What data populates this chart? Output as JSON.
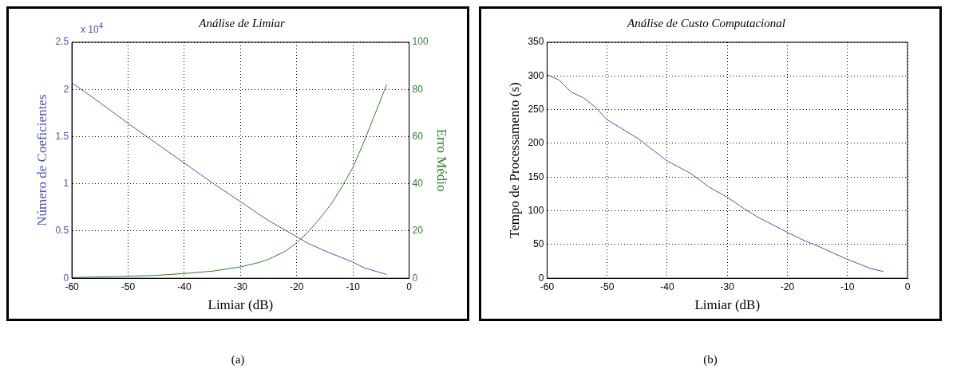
{
  "chart_data": [
    {
      "type": "line",
      "title": "Análise de Limiar",
      "xlabel": "Limiar (dB)",
      "ylabel": "Número de Coeficientes",
      "y2label": "Erro Médio",
      "annotations": [
        "x 10$^{4}$",
        "(a)"
      ],
      "xlim": [
        -60,
        0
      ],
      "xticks": [
        -60,
        -50,
        -40,
        -30,
        -20,
        -10,
        0
      ],
      "ylim": [
        0,
        2.5
      ],
      "yticks": [
        0,
        0.5,
        1,
        1.5,
        2,
        2.5
      ],
      "y2lim": [
        0,
        100
      ],
      "y2ticks": [
        0,
        20,
        40,
        60,
        80,
        100
      ],
      "grid": true,
      "series": [
        {
          "color": "#5050c8",
          "x": [
            -60,
            -55,
            -50,
            -45,
            -40,
            -35,
            -30,
            -25,
            -20,
            -18,
            -15,
            -10,
            -8,
            -4
          ],
          "values": [
            2.07,
            1.86,
            1.64,
            1.43,
            1.22,
            1.01,
            0.81,
            0.61,
            0.44,
            0.37,
            0.29,
            0.17,
            0.11,
            0.04
          ]
        },
        {
          "color": "#2e7d2e",
          "axis": "y2",
          "x": [
            -60,
            -50,
            -45,
            -40,
            -35,
            -30,
            -27,
            -25,
            -22,
            -20,
            -18,
            -16,
            -14,
            -12,
            -10,
            -8,
            -6,
            -4
          ],
          "values": [
            0.3,
            0.8,
            1.2,
            2,
            3,
            4.8,
            6.5,
            8,
            11.5,
            15,
            19.5,
            25,
            31,
            38.5,
            47,
            58,
            70,
            82
          ]
        }
      ]
    },
    {
      "type": "line",
      "title": "Análise de Custo Computacional",
      "xlabel": "Limiar (dB)",
      "ylabel": "Tempo de Processamento (s)",
      "annotations": [
        "(b)"
      ],
      "xlim": [
        -60,
        0
      ],
      "xticks": [
        -60,
        -50,
        -40,
        -30,
        -20,
        -10,
        0
      ],
      "ylim": [
        0,
        350
      ],
      "yticks": [
        0,
        50,
        100,
        150,
        200,
        250,
        300,
        350
      ],
      "grid": true,
      "series": [
        {
          "color": "#5050c8",
          "x": [
            -60,
            -58,
            -56,
            -54,
            -52,
            -50,
            -45,
            -40,
            -36,
            -33,
            -30,
            -27,
            -25,
            -20,
            -17,
            -15,
            -10,
            -6,
            -4
          ],
          "values": [
            302,
            294,
            276,
            268,
            254,
            235,
            208,
            174,
            155,
            135,
            120,
            102,
            91,
            68,
            55,
            48,
            28,
            14,
            10
          ]
        }
      ]
    }
  ]
}
